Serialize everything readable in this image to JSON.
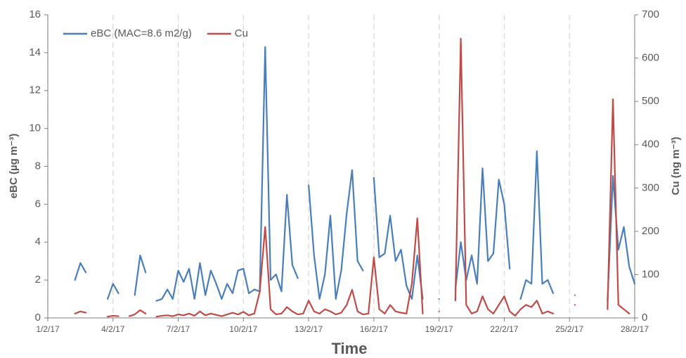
{
  "chart_data": {
    "type": "line",
    "x_label": "Time",
    "y_label": "eBC  (µg m⁻³)",
    "y2_label": "Cu (ng m⁻³)",
    "x": [
      1,
      1.25,
      1.5,
      1.75,
      2,
      2.25,
      2.5,
      2.75,
      3,
      3.25,
      3.5,
      3.75,
      4,
      4.25,
      4.5,
      4.75,
      5,
      5.25,
      5.5,
      5.75,
      6,
      6.25,
      6.5,
      6.75,
      7,
      7.25,
      7.5,
      7.75,
      8,
      8.25,
      8.5,
      8.75,
      9,
      9.25,
      9.5,
      9.75,
      10,
      10.25,
      10.5,
      10.75,
      11,
      11.25,
      11.5,
      11.75,
      12,
      12.25,
      12.5,
      12.75,
      13,
      13.25,
      13.5,
      13.75,
      14,
      14.25,
      14.5,
      14.75,
      15,
      15.25,
      15.5,
      15.75,
      16,
      16.25,
      16.5,
      16.75,
      17,
      17.25,
      17.5,
      17.75,
      18,
      18.25,
      18.5,
      18.75,
      19,
      19.25,
      19.5,
      19.75,
      20,
      20.25,
      20.5,
      20.75,
      21,
      21.25,
      21.5,
      21.75,
      22,
      22.25,
      22.5,
      22.75,
      23,
      23.25,
      23.5,
      23.75,
      24,
      24.25,
      24.5,
      24.75,
      25,
      25.25,
      25.5,
      25.75,
      26,
      26.25,
      26.5,
      26.75,
      27,
      27.25,
      27.5,
      27.75,
      28
    ],
    "xlim": [
      1,
      28
    ],
    "xticks": [
      {
        "value": 1,
        "label": "1/2/17"
      },
      {
        "value": 4,
        "label": "4/2/17"
      },
      {
        "value": 7,
        "label": "7/2/17"
      },
      {
        "value": 10,
        "label": "10/2/17"
      },
      {
        "value": 13,
        "label": "13/2/17"
      },
      {
        "value": 16,
        "label": "16/2/17"
      },
      {
        "value": 19,
        "label": "19/2/17"
      },
      {
        "value": 22,
        "label": "22/2/17"
      },
      {
        "value": 25,
        "label": "25/2/17"
      },
      {
        "value": 28,
        "label": "28/2/17"
      }
    ],
    "ylim": [
      0,
      16
    ],
    "yticks": [
      0,
      2,
      4,
      6,
      8,
      10,
      12,
      14,
      16
    ],
    "y2lim": [
      0,
      700
    ],
    "y2ticks": [
      0,
      100,
      200,
      300,
      400,
      500,
      600,
      700
    ],
    "x_grid": true,
    "legend": "top-left",
    "series": [
      {
        "name": "eBC (MAC=8.6 m2/g)",
        "color": "#4a7ebb",
        "values": [
          null,
          null,
          null,
          null,
          null,
          2.0,
          2.9,
          2.4,
          null,
          null,
          null,
          1.0,
          1.8,
          1.3,
          null,
          null,
          1.2,
          3.3,
          2.4,
          null,
          0.9,
          1.0,
          1.5,
          1.0,
          2.5,
          1.9,
          2.6,
          1.0,
          2.9,
          1.2,
          2.5,
          1.8,
          1.0,
          1.8,
          1.3,
          2.5,
          2.6,
          1.3,
          1.5,
          1.4,
          14.3,
          2.0,
          2.3,
          1.4,
          6.5,
          2.8,
          2.1,
          null,
          7.0,
          3.3,
          1.0,
          2.3,
          5.4,
          1.0,
          2.5,
          5.5,
          7.8,
          3.0,
          2.5,
          null,
          7.4,
          3.2,
          3.4,
          5.4,
          3.0,
          3.6,
          1.7,
          1.0,
          3.3,
          1.0,
          null,
          null,
          1.0,
          null,
          null,
          1.5,
          4.0,
          2.0,
          3.3,
          1.8,
          7.9,
          3.0,
          3.4,
          7.3,
          6.0,
          2.6,
          null,
          1.0,
          2.0,
          1.8,
          8.8,
          1.8,
          2.0,
          1.3,
          null,
          null,
          null,
          1.2,
          null,
          null,
          null,
          null,
          null,
          0.9,
          7.5,
          3.6,
          4.8,
          2.7,
          1.8
        ]
      },
      {
        "name": "Cu",
        "color": "#be4b48",
        "axis": "y2",
        "values": [
          null,
          null,
          null,
          null,
          null,
          10,
          15,
          12,
          null,
          null,
          null,
          3,
          5,
          4,
          null,
          4,
          8,
          18,
          10,
          null,
          3,
          5,
          6,
          4,
          8,
          6,
          10,
          5,
          15,
          6,
          10,
          7,
          4,
          8,
          12,
          8,
          14,
          6,
          10,
          60,
          210,
          20,
          8,
          10,
          25,
          15,
          8,
          10,
          40,
          15,
          10,
          20,
          15,
          8,
          12,
          30,
          65,
          15,
          8,
          10,
          140,
          20,
          10,
          30,
          15,
          12,
          10,
          80,
          230,
          10,
          null,
          null,
          15,
          null,
          null,
          40,
          645,
          30,
          10,
          15,
          50,
          20,
          10,
          30,
          50,
          15,
          5,
          20,
          30,
          25,
          40,
          10,
          15,
          10,
          null,
          null,
          null,
          30,
          null,
          null,
          null,
          null,
          null,
          20,
          505,
          30,
          20,
          10,
          null
        ]
      }
    ]
  }
}
